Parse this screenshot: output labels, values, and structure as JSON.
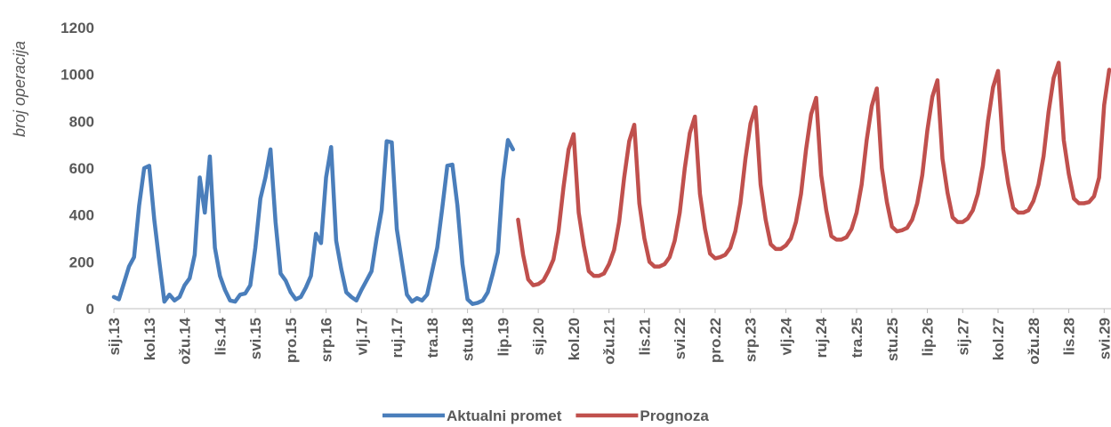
{
  "chart_data": {
    "type": "line",
    "y_label": "broj operacija",
    "categories": [
      "sij.13",
      null,
      null,
      null,
      null,
      null,
      null,
      "kol.13",
      null,
      null,
      null,
      null,
      null,
      null,
      "ožu.14",
      null,
      null,
      null,
      null,
      null,
      null,
      "lis.14",
      null,
      null,
      null,
      null,
      null,
      null,
      "svi.15",
      null,
      null,
      null,
      null,
      null,
      null,
      "pro.15",
      null,
      null,
      null,
      null,
      null,
      null,
      "srp.16",
      null,
      null,
      null,
      null,
      null,
      null,
      "vlj.17",
      null,
      null,
      null,
      null,
      null,
      null,
      "ruj.17",
      null,
      null,
      null,
      null,
      null,
      null,
      "tra.18",
      null,
      null,
      null,
      null,
      null,
      null,
      "stu.18",
      null,
      null,
      null,
      null,
      null,
      null,
      "lip.19",
      null,
      null,
      null,
      null,
      null,
      null,
      "sij.20",
      null,
      null,
      null,
      null,
      null,
      null,
      "kol.20",
      null,
      null,
      null,
      null,
      null,
      null,
      "ožu.21",
      null,
      null,
      null,
      null,
      null,
      null,
      "lis.21",
      null,
      null,
      null,
      null,
      null,
      null,
      "svi.22",
      null,
      null,
      null,
      null,
      null,
      null,
      "pro.22",
      null,
      null,
      null,
      null,
      null,
      null,
      "srp.23",
      null,
      null,
      null,
      null,
      null,
      null,
      "vlj.24",
      null,
      null,
      null,
      null,
      null,
      null,
      "ruj.24",
      null,
      null,
      null,
      null,
      null,
      null,
      "tra.25",
      null,
      null,
      null,
      null,
      null,
      null,
      "stu.25",
      null,
      null,
      null,
      null,
      null,
      null,
      "lip.26",
      null,
      null,
      null,
      null,
      null,
      null,
      "sij.27",
      null,
      null,
      null,
      null,
      null,
      null,
      "kol.27",
      null,
      null,
      null,
      null,
      null,
      null,
      "ožu.28",
      null,
      null,
      null,
      null,
      null,
      null,
      "lis.28",
      null,
      null,
      null,
      null,
      null,
      null,
      "svi.29",
      null
    ],
    "series": [
      {
        "name": "Aktualni promet",
        "color": "#4a7ebb",
        "values": [
          50,
          40,
          110,
          180,
          220,
          440,
          600,
          610,
          380,
          200,
          30,
          60,
          35,
          50,
          100,
          130,
          230,
          560,
          410,
          650,
          260,
          140,
          80,
          35,
          30,
          60,
          65,
          100,
          260,
          470,
          560,
          680,
          370,
          150,
          120,
          70,
          40,
          50,
          90,
          140,
          320,
          280,
          560,
          690,
          290,
          170,
          70,
          50,
          35,
          80,
          120,
          160,
          300,
          420,
          715,
          710,
          340,
          200,
          60,
          30,
          45,
          35,
          60,
          160,
          260,
          430,
          610,
          615,
          440,
          190,
          40,
          20,
          25,
          35,
          70,
          150,
          240,
          550,
          720,
          680,
          null,
          null,
          null,
          null,
          null,
          null,
          null,
          null,
          null,
          null,
          null,
          null,
          null,
          null,
          null,
          null,
          null,
          null,
          null,
          null,
          null,
          null,
          null,
          null,
          null,
          null,
          null,
          null,
          null,
          null,
          null,
          null,
          null,
          null,
          null,
          null,
          null,
          null,
          null,
          null,
          null,
          null,
          null,
          null,
          null,
          null,
          null,
          null,
          null,
          null,
          null,
          null,
          null,
          null,
          null,
          null,
          null,
          null,
          null,
          null,
          null,
          null,
          null,
          null,
          null,
          null,
          null,
          null,
          null,
          null,
          null,
          null,
          null,
          null,
          null,
          null,
          null,
          null,
          null,
          null,
          null,
          null,
          null,
          null,
          null,
          null,
          null,
          null,
          null,
          null,
          null,
          null,
          null,
          null,
          null,
          null,
          null,
          null,
          null,
          null,
          null,
          null,
          null,
          null,
          null,
          null,
          null,
          null,
          null,
          null,
          null,
          null,
          null,
          null,
          null,
          null,
          null,
          null
        ]
      },
      {
        "name": "Prognoza",
        "color": "#c0504d",
        "values": [
          null,
          null,
          null,
          null,
          null,
          null,
          null,
          null,
          null,
          null,
          null,
          null,
          null,
          null,
          null,
          null,
          null,
          null,
          null,
          null,
          null,
          null,
          null,
          null,
          null,
          null,
          null,
          null,
          null,
          null,
          null,
          null,
          null,
          null,
          null,
          null,
          null,
          null,
          null,
          null,
          null,
          null,
          null,
          null,
          null,
          null,
          null,
          null,
          null,
          null,
          null,
          null,
          null,
          null,
          null,
          null,
          null,
          null,
          null,
          null,
          null,
          null,
          null,
          null,
          null,
          null,
          null,
          null,
          null,
          null,
          null,
          null,
          null,
          null,
          null,
          null,
          null,
          null,
          null,
          null,
          380,
          230,
          125,
          100,
          105,
          120,
          160,
          210,
          330,
          520,
          680,
          745,
          410,
          270,
          160,
          140,
          140,
          150,
          190,
          250,
          370,
          560,
          715,
          785,
          450,
          300,
          200,
          180,
          180,
          190,
          220,
          290,
          410,
          600,
          750,
          820,
          490,
          340,
          235,
          215,
          220,
          230,
          260,
          330,
          450,
          640,
          790,
          860,
          530,
          380,
          275,
          255,
          255,
          270,
          300,
          370,
          490,
          680,
          830,
          900,
          570,
          420,
          310,
          295,
          295,
          305,
          340,
          410,
          530,
          720,
          865,
          940,
          600,
          455,
          350,
          330,
          335,
          345,
          380,
          450,
          570,
          760,
          905,
          975,
          640,
          495,
          390,
          370,
          370,
          385,
          420,
          490,
          610,
          800,
          945,
          1015,
          680,
          535,
          430,
          410,
          410,
          420,
          460,
          530,
          650,
          840,
          985,
          1050,
          720,
          575,
          470,
          450,
          450,
          455,
          480,
          560,
          870,
          1020
        ]
      }
    ],
    "ylim": [
      0,
      1200
    ],
    "yticks": [
      0,
      200,
      400,
      600,
      800,
      1000,
      1200
    ],
    "grid": false,
    "legend": "bottom"
  }
}
